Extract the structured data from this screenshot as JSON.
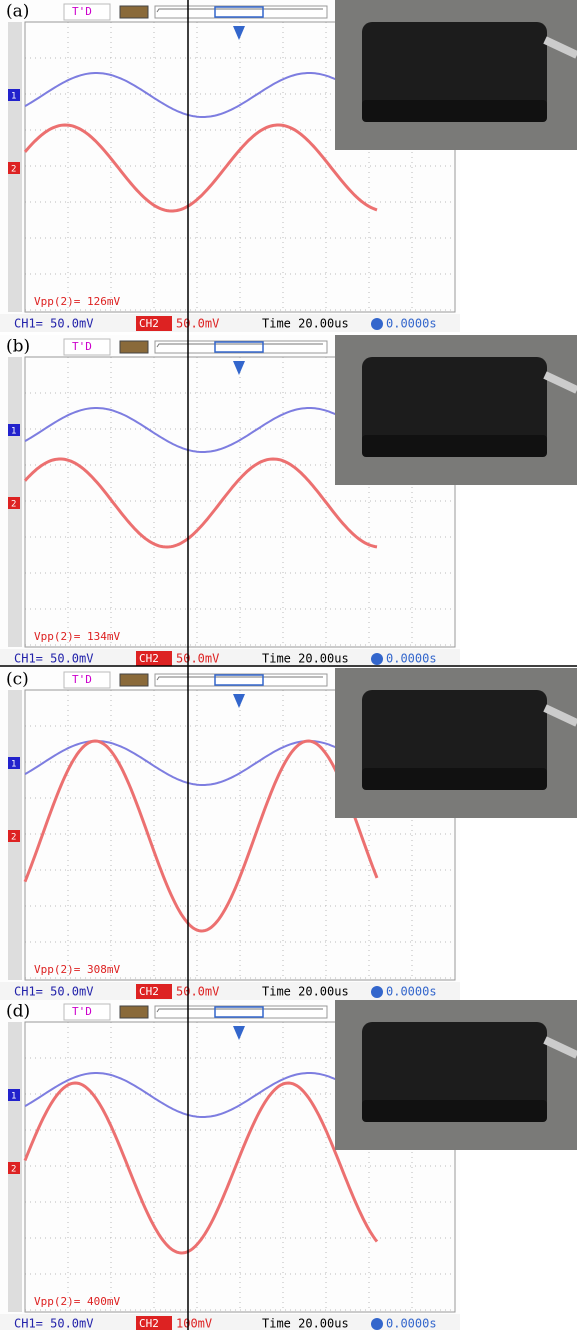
{
  "panels": [
    {
      "label": "(a)",
      "trigger": "T'D",
      "marker1": "1",
      "marker2": "2",
      "measurement": "Vpp(2)= 126mV",
      "ch1": "CH1= 50.0mV",
      "ch2": "CH2",
      "ch2_scale": "50.0mV",
      "time": "Time 20.00us",
      "offset": "0.0000s"
    },
    {
      "label": "(b)",
      "trigger": "T'D",
      "marker1": "1",
      "marker2": "2",
      "measurement": "Vpp(2)= 134mV",
      "ch1": "CH1= 50.0mV",
      "ch2": "CH2",
      "ch2_scale": "50.0mV",
      "time": "Time 20.00us",
      "offset": "0.0000s"
    },
    {
      "label": "(c)",
      "trigger": "T'D",
      "marker1": "1",
      "marker2": "2",
      "measurement": "Vpp(2)= 308mV",
      "ch1": "CH1= 50.0mV",
      "ch2": "CH2",
      "ch2_scale": "50.0mV",
      "time": "Time 20.00us",
      "offset": "0.0000s"
    },
    {
      "label": "(d)",
      "trigger": "T'D",
      "marker1": "1",
      "marker2": "2",
      "measurement": "Vpp(2)= 400mV",
      "ch1": "CH1= 50.0mV",
      "ch2": "CH2",
      "ch2_scale": "100mV",
      "time": "Time 20.00us",
      "offset": "0.0000s"
    }
  ]
}
